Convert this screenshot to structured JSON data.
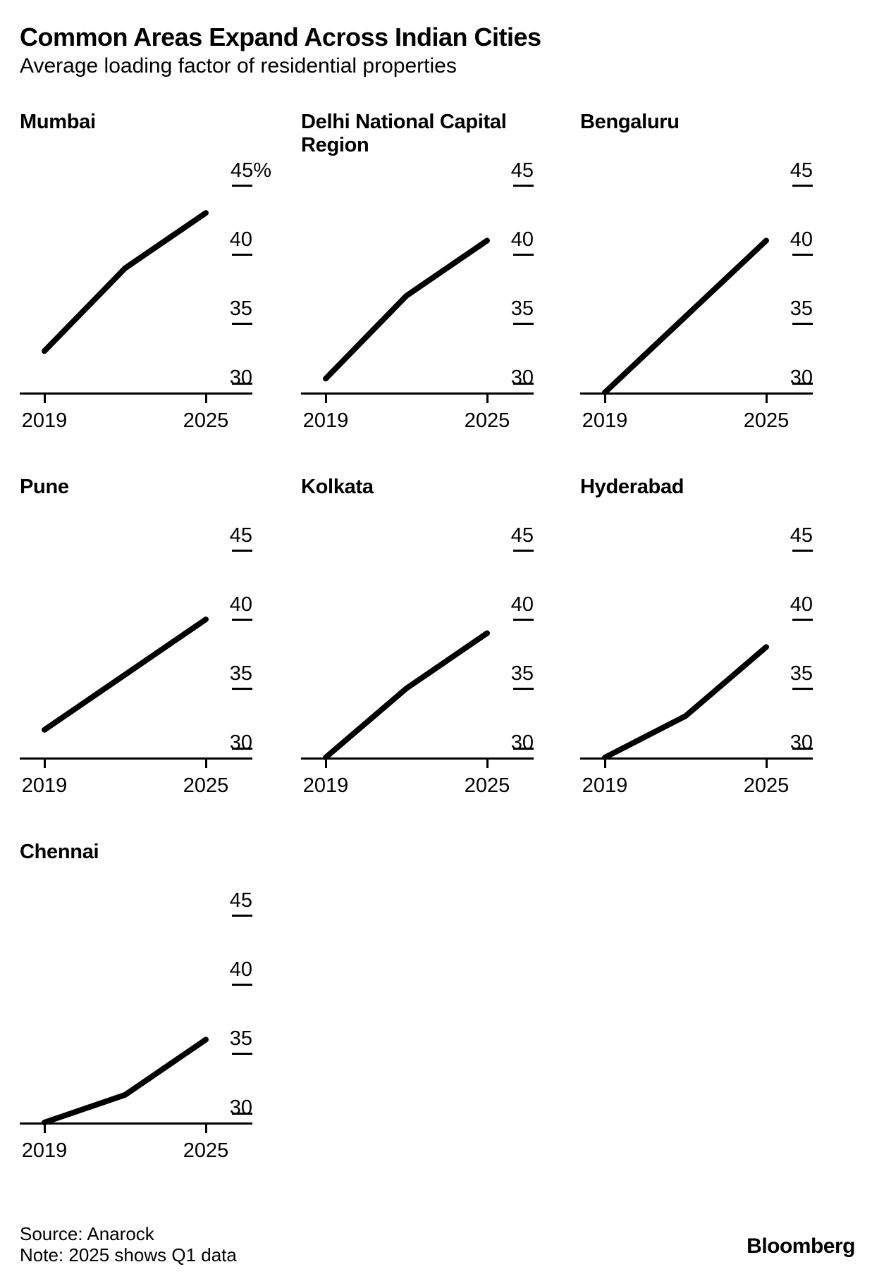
{
  "header": {
    "title": "Common Areas Expand Across Indian Cities",
    "subtitle": "Average loading factor of residential properties"
  },
  "footer": {
    "source": "Source: Anarock",
    "note": "Note: 2025 shows Q1 data",
    "brand": "Bloomberg"
  },
  "chart_data": {
    "type": "line",
    "layout": "small-multiples, 3-column grid of 7 single-series line charts",
    "title": "Common Areas Expand Across Indian Cities",
    "subtitle": "Average loading factor of residential properties",
    "unit": "%",
    "x": [
      2019,
      2022,
      2025
    ],
    "xticks_shown": [
      "2019",
      "2025"
    ],
    "yticks": [
      30,
      35,
      40,
      45
    ],
    "ylim": [
      30,
      47
    ],
    "gridlines": false,
    "line_color": "#000000",
    "series": [
      {
        "name": "Mumbai",
        "values": [
          33,
          39,
          43
        ],
        "ytick_labels": [
          "45%",
          "40",
          "35",
          "30"
        ]
      },
      {
        "name": "Delhi National Capital Region",
        "values": [
          31,
          37,
          41
        ],
        "ytick_labels": [
          "45",
          "40",
          "35",
          "30"
        ]
      },
      {
        "name": "Bengaluru",
        "values": [
          30,
          35.5,
          41
        ],
        "ytick_labels": [
          "45",
          "40",
          "35",
          "30"
        ]
      },
      {
        "name": "Pune",
        "values": [
          32,
          36,
          40
        ],
        "ytick_labels": [
          "45",
          "40",
          "35",
          "30"
        ]
      },
      {
        "name": "Kolkata",
        "values": [
          30,
          35,
          39
        ],
        "ytick_labels": [
          "45",
          "40",
          "35",
          "30"
        ]
      },
      {
        "name": "Hyderabad",
        "values": [
          30,
          33,
          38
        ],
        "ytick_labels": [
          "45",
          "40",
          "35",
          "30"
        ]
      },
      {
        "name": "Chennai",
        "values": [
          30,
          32,
          36
        ],
        "ytick_labels": [
          "45",
          "40",
          "35",
          "30"
        ]
      }
    ],
    "source": "Anarock",
    "note": "2025 shows Q1 data"
  }
}
